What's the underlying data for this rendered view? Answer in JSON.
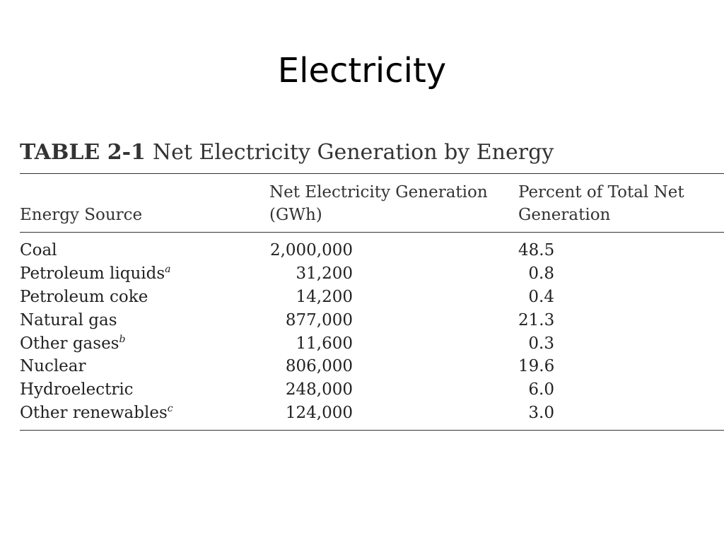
{
  "slide": {
    "title": "Electricity"
  },
  "table": {
    "caption_number": "TABLE 2-1",
    "caption_text": "Net Electricity Generation by Energy",
    "headers": {
      "source": "Energy Source",
      "generation_line1": "Net Electricity Generation",
      "generation_line2": "(GWh)",
      "percent_line1": "Percent of Total Net",
      "percent_line2": "Generation"
    },
    "rows": [
      {
        "source": "Coal",
        "note": "",
        "generation": "2,000,000",
        "percent": "48.5"
      },
      {
        "source": "Petroleum liquids",
        "note": "a",
        "generation": "31,200",
        "percent": "0.8"
      },
      {
        "source": "Petroleum coke",
        "note": "",
        "generation": "14,200",
        "percent": "0.4"
      },
      {
        "source": "Natural gas",
        "note": "",
        "generation": "877,000",
        "percent": "21.3"
      },
      {
        "source": "Other gases",
        "note": "b",
        "generation": "11,600",
        "percent": "0.3"
      },
      {
        "source": "Nuclear",
        "note": "",
        "generation": "806,000",
        "percent": "19.6"
      },
      {
        "source": "Hydroelectric",
        "note": "",
        "generation": "248,000",
        "percent": "6.0"
      },
      {
        "source": "Other renewables",
        "note": "c",
        "generation": "124,000",
        "percent": "3.0"
      }
    ]
  }
}
